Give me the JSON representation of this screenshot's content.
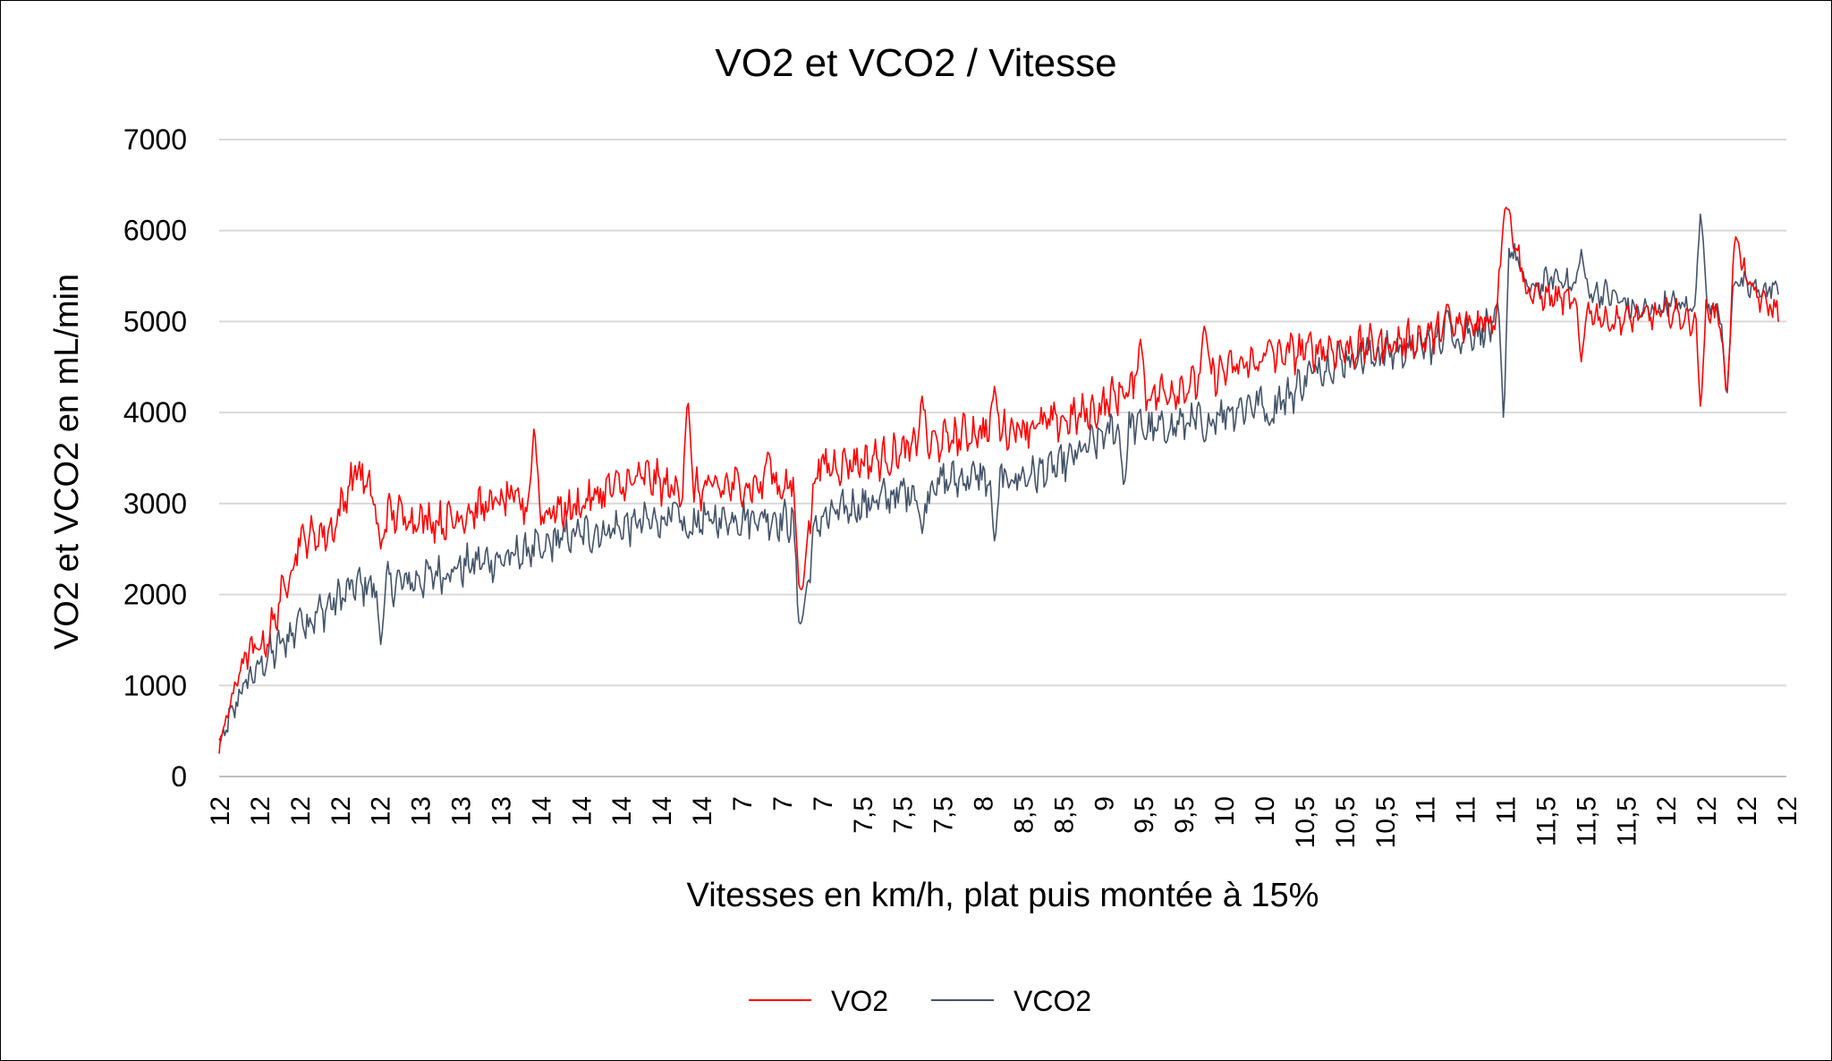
{
  "chart_data": {
    "type": "line",
    "title": "VO2 et VCO2 / Vitesse",
    "xlabel": "Vitesses en km/h, plat puis montée à 15%",
    "ylabel": "VO2 et VCO2 en mL/min",
    "ylim": [
      0,
      7000
    ],
    "yticks": [
      "0",
      "1000",
      "2000",
      "3000",
      "4000",
      "5000",
      "6000",
      "7000"
    ],
    "grid": true,
    "legend": "bottom-center",
    "categories": [
      "12",
      "12",
      "12",
      "12",
      "12",
      "13",
      "13",
      "13",
      "14",
      "14",
      "14",
      "14",
      "14",
      "7",
      "7",
      "7",
      "7,5",
      "7,5",
      "7,5",
      "8",
      "8,5",
      "8,5",
      "9",
      "9,5",
      "9,5",
      "10",
      "10",
      "10,5",
      "10,5",
      "10,5",
      "11",
      "11",
      "11",
      "11,5",
      "11,5",
      "11,5",
      "12",
      "12",
      "12",
      "12"
    ],
    "series": [
      {
        "name": "VO2",
        "color": "#ff0000",
        "values": [
          [
            0,
            350
          ],
          [
            1.5,
            1300
          ],
          [
            3,
            1500
          ],
          [
            5,
            2600
          ],
          [
            7,
            2700
          ],
          [
            8.5,
            3400
          ],
          [
            10,
            2900
          ],
          [
            12,
            2850
          ],
          [
            14,
            2800
          ],
          [
            16,
            2950
          ],
          [
            18,
            3050
          ],
          [
            20,
            2900
          ],
          [
            22,
            2950
          ],
          [
            24,
            3150
          ],
          [
            25,
            3200
          ],
          [
            26.5,
            3300
          ],
          [
            28,
            3150
          ],
          [
            30,
            3150
          ],
          [
            32,
            3200
          ],
          [
            34,
            3200
          ],
          [
            35.5,
            3200
          ],
          [
            36,
            2100
          ],
          [
            37,
            3400
          ],
          [
            39,
            3450
          ],
          [
            41,
            3500
          ],
          [
            43,
            3600
          ],
          [
            45,
            3700
          ],
          [
            47,
            3800
          ],
          [
            48,
            3800
          ],
          [
            50,
            3850
          ],
          [
            52,
            3900
          ],
          [
            54,
            4000
          ],
          [
            56,
            4250
          ],
          [
            58,
            4200
          ],
          [
            60,
            4300
          ],
          [
            62,
            4450
          ],
          [
            64,
            4550
          ],
          [
            66,
            4650
          ],
          [
            68,
            4700
          ],
          [
            70,
            4700
          ],
          [
            72,
            4750
          ],
          [
            74,
            4800
          ],
          [
            76,
            4900
          ],
          [
            78,
            5000
          ],
          [
            79,
            5050
          ],
          [
            79.7,
            6250
          ],
          [
            81,
            5300
          ],
          [
            83,
            5250
          ],
          [
            84,
            5200
          ],
          [
            86,
            5000
          ],
          [
            88,
            5050
          ],
          [
            90,
            5100
          ],
          [
            91,
            5000
          ],
          [
            92,
            5200
          ],
          [
            93,
            5000
          ],
          [
            94,
            5700
          ],
          [
            95,
            5300
          ],
          [
            96.5,
            5100
          ]
        ],
        "spikes": [
          [
            10,
            2500
          ],
          [
            19.5,
            3900
          ],
          [
            29,
            4200
          ],
          [
            34,
            3600
          ],
          [
            36,
            2050
          ],
          [
            43.5,
            4200
          ],
          [
            48,
            4300
          ],
          [
            57,
            4850
          ],
          [
            61,
            5000
          ],
          [
            65,
            4800
          ],
          [
            76,
            5200
          ],
          [
            79.6,
            6260
          ],
          [
            84.3,
            4550
          ],
          [
            91.7,
            4000
          ],
          [
            93.9,
            5950
          ],
          [
            93.3,
            4100
          ]
        ]
      },
      {
        "name": "VCO2",
        "color": "#44546a",
        "values": [
          [
            0,
            320
          ],
          [
            1.5,
            1000
          ],
          [
            3,
            1300
          ],
          [
            5,
            1650
          ],
          [
            7,
            1900
          ],
          [
            8.5,
            2100
          ],
          [
            10,
            2100
          ],
          [
            12,
            2150
          ],
          [
            14,
            2250
          ],
          [
            16,
            2350
          ],
          [
            18,
            2400
          ],
          [
            20,
            2550
          ],
          [
            22,
            2650
          ],
          [
            24,
            2700
          ],
          [
            25,
            2750
          ],
          [
            26.5,
            2800
          ],
          [
            28,
            2850
          ],
          [
            30,
            2800
          ],
          [
            32,
            2850
          ],
          [
            34,
            2850
          ],
          [
            35.5,
            2800
          ],
          [
            36,
            1700
          ],
          [
            37,
            2800
          ],
          [
            39,
            2950
          ],
          [
            41,
            3050
          ],
          [
            43,
            3150
          ],
          [
            45,
            3250
          ],
          [
            47,
            3300
          ],
          [
            48,
            3250
          ],
          [
            50,
            3300
          ],
          [
            52,
            3400
          ],
          [
            54,
            3650
          ],
          [
            56,
            3900
          ],
          [
            58,
            3800
          ],
          [
            60,
            3900
          ],
          [
            62,
            4000
          ],
          [
            64,
            4100
          ],
          [
            66,
            4150
          ],
          [
            68,
            4500
          ],
          [
            70,
            4600
          ],
          [
            72,
            4650
          ],
          [
            74,
            4700
          ],
          [
            76,
            4800
          ],
          [
            78,
            4900
          ],
          [
            79,
            4950
          ],
          [
            79.7,
            5950
          ],
          [
            81,
            5350
          ],
          [
            83,
            5500
          ],
          [
            84,
            5350
          ],
          [
            86,
            5300
          ],
          [
            88,
            5100
          ],
          [
            90,
            5200
          ],
          [
            91,
            5150
          ],
          [
            92,
            5300
          ],
          [
            93,
            5050
          ],
          [
            94,
            5400
          ],
          [
            95,
            5350
          ],
          [
            96.5,
            5350
          ]
        ],
        "spikes": [
          [
            5,
            1850
          ],
          [
            10,
            1450
          ],
          [
            20,
            2400
          ],
          [
            29,
            2600
          ],
          [
            36,
            1680
          ],
          [
            43.5,
            2650
          ],
          [
            48,
            2560
          ],
          [
            56,
            3150
          ],
          [
            61,
            3650
          ],
          [
            65,
            3850
          ],
          [
            76,
            5150
          ],
          [
            79.5,
            3850
          ],
          [
            84.3,
            5800
          ],
          [
            91.7,
            6250
          ],
          [
            93.3,
            4100
          ],
          [
            93.9,
            5450
          ]
        ]
      }
    ]
  }
}
